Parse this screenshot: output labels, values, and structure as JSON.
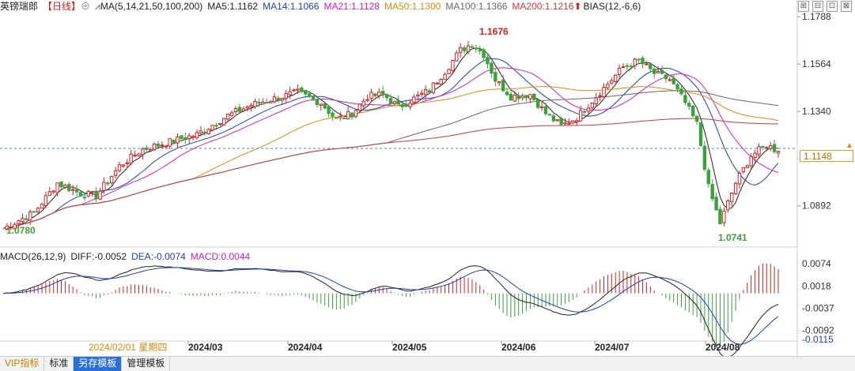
{
  "header": {
    "instrument": "英镑瑞郎",
    "period": "【日线】",
    "gear": "⊕",
    "ma_title": "MA(5,14,21,50,100,200)",
    "ma_items": [
      {
        "label": "MA5:1.1162",
        "color": "#222222"
      },
      {
        "label": "MA14:1.1066",
        "color": "#1a3fbf"
      },
      {
        "label": "MA21:1.1128",
        "color": "#d020c8"
      },
      {
        "label": "MA50:1.1300",
        "color": "#e08a10"
      },
      {
        "label": "MA100:1.1366",
        "color": "#666666"
      },
      {
        "label": "MA200:1.1216",
        "color": "#c83a3a"
      }
    ],
    "bias": "BIAS(12,-6,6)"
  },
  "macd_header": {
    "title": "MACD(26,12,9)",
    "diff": "DIFF:-0.0052",
    "dea": "DEA:-0.0074",
    "macd": "MACD:0.0044"
  },
  "price_axis": {
    "ticks": [
      "1.1788",
      "1.1564",
      "1.1340",
      "1.0892"
    ],
    "current": "1.1148",
    "high_label": "1.1676",
    "low_label": "1.0741",
    "start_label": "1.0780"
  },
  "macd_axis": {
    "ticks": [
      "0.0074",
      "0.0018",
      "-0.0037",
      "-0.0092",
      "-0.0115"
    ]
  },
  "time_axis": {
    "cursor_label": "2024/02/01 星期四",
    "months": [
      "2024/03",
      "2024/04",
      "2024/05",
      "2024/06",
      "2024/07",
      "2024/08"
    ]
  },
  "tabs": [
    "VIP指标",
    "标准",
    "另存模板",
    "管理模板"
  ],
  "colors": {
    "up": "#d42020",
    "down": "#3ca03c",
    "bg": "#ffffff"
  },
  "chart_data": {
    "type": "candlestick",
    "title": "英镑瑞郎 日线",
    "ylim": [
      1.07,
      1.18
    ],
    "anchors": [
      {
        "i": 0,
        "v": 1.0785
      },
      {
        "i": 8,
        "v": 1.086
      },
      {
        "i": 14,
        "v": 1.1
      },
      {
        "i": 20,
        "v": 1.095
      },
      {
        "i": 24,
        "v": 1.094
      },
      {
        "i": 30,
        "v": 1.108
      },
      {
        "i": 36,
        "v": 1.116
      },
      {
        "i": 42,
        "v": 1.119
      },
      {
        "i": 50,
        "v": 1.123
      },
      {
        "i": 58,
        "v": 1.132
      },
      {
        "i": 64,
        "v": 1.137
      },
      {
        "i": 70,
        "v": 1.14
      },
      {
        "i": 76,
        "v": 1.143
      },
      {
        "i": 82,
        "v": 1.138
      },
      {
        "i": 86,
        "v": 1.13
      },
      {
        "i": 90,
        "v": 1.133
      },
      {
        "i": 94,
        "v": 1.141
      },
      {
        "i": 98,
        "v": 1.142
      },
      {
        "i": 102,
        "v": 1.136
      },
      {
        "i": 106,
        "v": 1.14
      },
      {
        "i": 110,
        "v": 1.144
      },
      {
        "i": 114,
        "v": 1.153
      },
      {
        "i": 118,
        "v": 1.163
      },
      {
        "i": 121,
        "v": 1.166
      },
      {
        "i": 124,
        "v": 1.161
      },
      {
        "i": 127,
        "v": 1.149
      },
      {
        "i": 131,
        "v": 1.141
      },
      {
        "i": 136,
        "v": 1.142
      },
      {
        "i": 140,
        "v": 1.133
      },
      {
        "i": 144,
        "v": 1.127
      },
      {
        "i": 148,
        "v": 1.131
      },
      {
        "i": 152,
        "v": 1.139
      },
      {
        "i": 156,
        "v": 1.147
      },
      {
        "i": 160,
        "v": 1.155
      },
      {
        "i": 164,
        "v": 1.158
      },
      {
        "i": 168,
        "v": 1.152
      },
      {
        "i": 172,
        "v": 1.149
      },
      {
        "i": 176,
        "v": 1.138
      },
      {
        "i": 179,
        "v": 1.128
      },
      {
        "i": 182,
        "v": 1.098
      },
      {
        "i": 185,
        "v": 1.081
      },
      {
        "i": 189,
        "v": 1.1
      },
      {
        "i": 193,
        "v": 1.113
      },
      {
        "i": 197,
        "v": 1.118
      },
      {
        "i": 200,
        "v": 1.115
      }
    ]
  }
}
